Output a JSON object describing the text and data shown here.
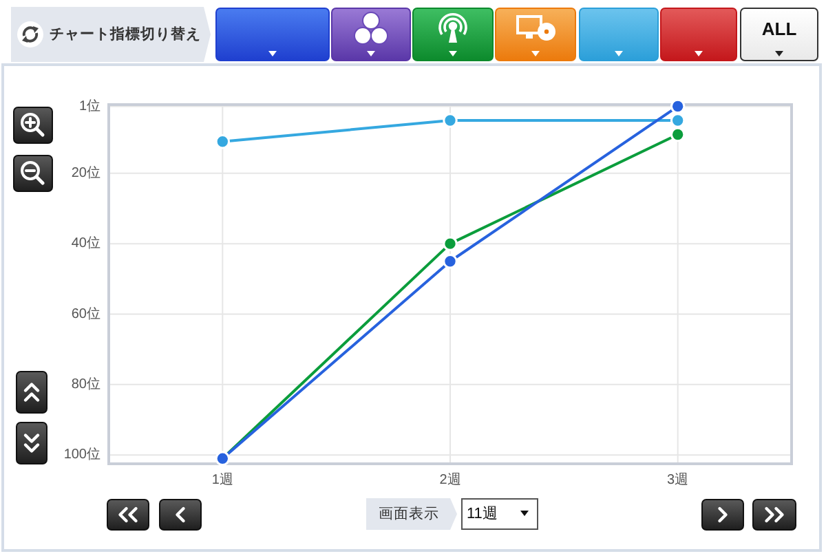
{
  "chart_data": {
    "type": "line",
    "categories": [
      "1週",
      "2週",
      "3週"
    ],
    "series": [
      {
        "color": "#35a8e0",
        "values": [
          11,
          5,
          5
        ]
      },
      {
        "color": "#0b9d3c",
        "values": [
          101,
          40,
          9
        ]
      },
      {
        "color": "#2762de",
        "values": [
          101,
          45,
          1
        ]
      }
    ],
    "ylim": [
      102.5,
      0.5
    ],
    "yticks": [
      {
        "value": 1,
        "label": "1位"
      },
      {
        "value": 20,
        "label": "20位"
      },
      {
        "value": 40,
        "label": "40位"
      },
      {
        "value": 60,
        "label": "60位"
      },
      {
        "value": 80,
        "label": "80位"
      },
      {
        "value": 100,
        "label": "100位"
      }
    ],
    "grid": true,
    "marker": "circle",
    "line_style": "solid",
    "annotations": [
      "チャート指標切り替え",
      "ALL",
      "画面表示",
      "11週"
    ]
  }
}
